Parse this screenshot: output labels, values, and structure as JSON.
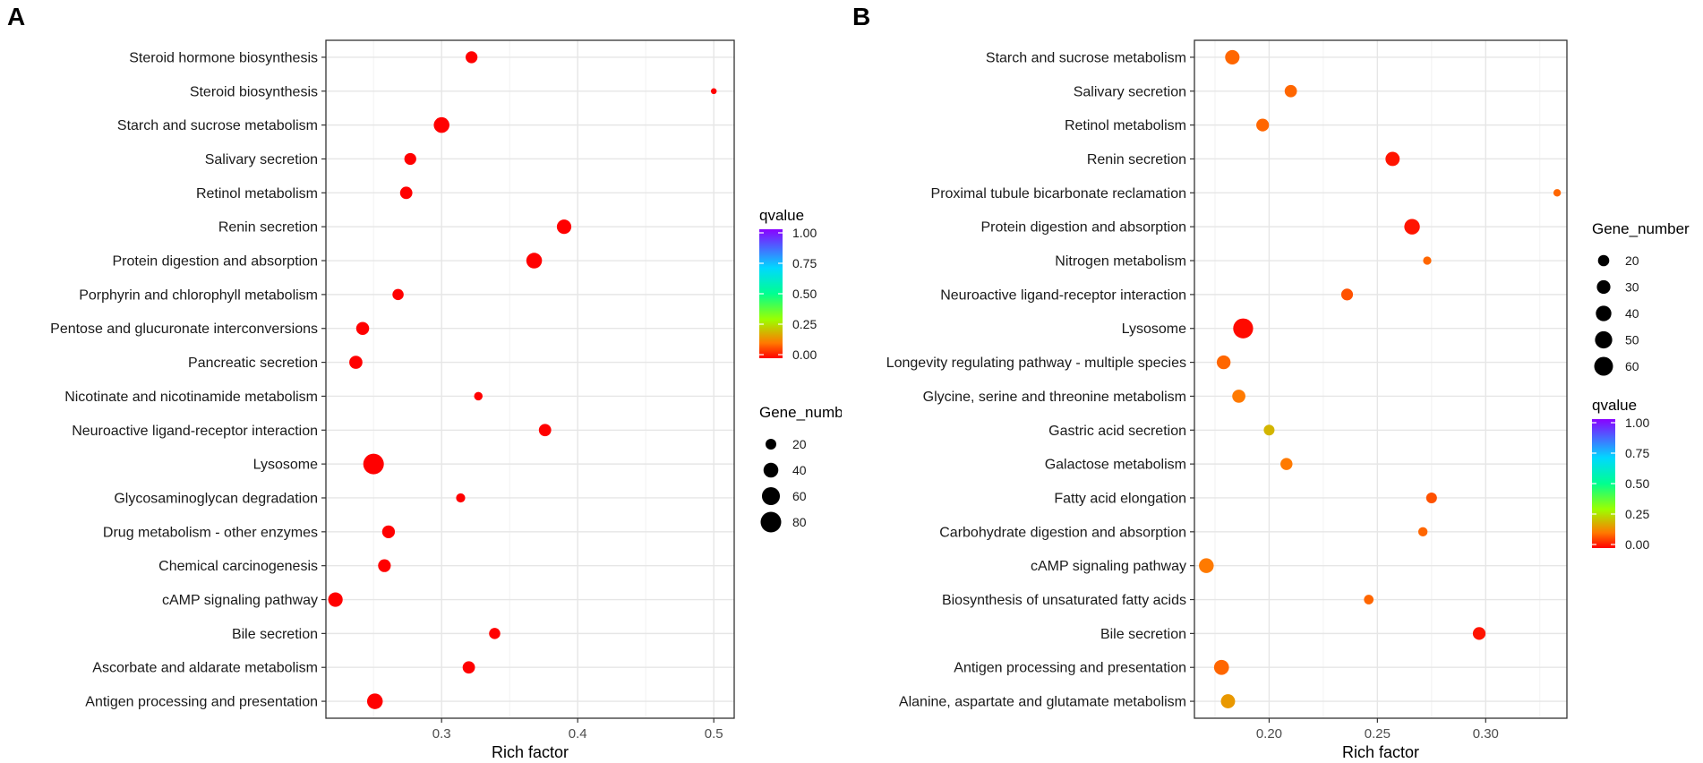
{
  "chart_data": [
    {
      "panel": "A",
      "type": "scatter",
      "xlabel": "Rich factor",
      "ylabel": "",
      "xlim": [
        0.215,
        0.515
      ],
      "xticks": [
        0.3,
        0.4,
        0.5
      ],
      "xtick_labels": [
        "0.3",
        "0.4",
        "0.5"
      ],
      "grid": true,
      "categories": [
        "Steroid hormone biosynthesis",
        "Steroid biosynthesis",
        "Starch and sucrose metabolism",
        "Salivary secretion",
        "Retinol metabolism",
        "Renin secretion",
        "Protein digestion and absorption",
        "Porphyrin and chlorophyll metabolism",
        "Pentose and glucuronate interconversions",
        "Pancreatic secretion",
        "Nicotinate and nicotinamide metabolism",
        "Neuroactive ligand-receptor interaction",
        "Lysosome",
        "Glycosaminoglycan degradation",
        "Drug metabolism - other enzymes",
        "Chemical carcinogenesis",
        "cAMP signaling pathway",
        "Bile secretion",
        "Ascorbate and aldarate metabolism",
        "Antigen processing and presentation"
      ],
      "points": [
        {
          "rich_factor": 0.322,
          "gene_number": 25,
          "qvalue": 0.0
        },
        {
          "rich_factor": 0.5,
          "gene_number": 5,
          "qvalue": 0.0
        },
        {
          "rich_factor": 0.3,
          "gene_number": 45,
          "qvalue": 0.0
        },
        {
          "rich_factor": 0.277,
          "gene_number": 25,
          "qvalue": 0.0
        },
        {
          "rich_factor": 0.274,
          "gene_number": 27,
          "qvalue": 0.0
        },
        {
          "rich_factor": 0.39,
          "gene_number": 38,
          "qvalue": 0.0
        },
        {
          "rich_factor": 0.368,
          "gene_number": 45,
          "qvalue": 0.0
        },
        {
          "rich_factor": 0.268,
          "gene_number": 22,
          "qvalue": 0.0
        },
        {
          "rich_factor": 0.242,
          "gene_number": 30,
          "qvalue": 0.0
        },
        {
          "rich_factor": 0.237,
          "gene_number": 31,
          "qvalue": 0.0
        },
        {
          "rich_factor": 0.327,
          "gene_number": 12,
          "qvalue": 0.0
        },
        {
          "rich_factor": 0.376,
          "gene_number": 27,
          "qvalue": 0.0
        },
        {
          "rich_factor": 0.25,
          "gene_number": 80,
          "qvalue": 0.0
        },
        {
          "rich_factor": 0.314,
          "gene_number": 14,
          "qvalue": 0.0
        },
        {
          "rich_factor": 0.261,
          "gene_number": 29,
          "qvalue": 0.0
        },
        {
          "rich_factor": 0.258,
          "gene_number": 29,
          "qvalue": 0.0
        },
        {
          "rich_factor": 0.222,
          "gene_number": 38,
          "qvalue": 0.0
        },
        {
          "rich_factor": 0.339,
          "gene_number": 22,
          "qvalue": 0.0
        },
        {
          "rich_factor": 0.32,
          "gene_number": 27,
          "qvalue": 0.0
        },
        {
          "rich_factor": 0.251,
          "gene_number": 45,
          "qvalue": 0.0
        }
      ],
      "legend_color": {
        "title": "qvalue",
        "labels": [
          "1.00",
          "0.75",
          "0.50",
          "0.25",
          "0.00"
        ]
      },
      "legend_size": {
        "title": "Gene_number",
        "labels": [
          "20",
          "40",
          "60",
          "80"
        ]
      }
    },
    {
      "panel": "B",
      "type": "scatter",
      "xlabel": "Rich factor",
      "ylabel": "",
      "xlim": [
        0.1655,
        0.3375
      ],
      "xticks": [
        0.2,
        0.25,
        0.3
      ],
      "xtick_labels": [
        "0.20",
        "0.25",
        "0.30"
      ],
      "grid": true,
      "categories": [
        "Starch and sucrose metabolism",
        "Salivary secretion",
        "Retinol metabolism",
        "Renin secretion",
        "Proximal tubule bicarbonate reclamation",
        "Protein digestion and absorption",
        "Nitrogen metabolism",
        "Neuroactive ligand-receptor interaction",
        "Lysosome",
        "Longevity regulating pathway - multiple species",
        "Glycine, serine and threonine metabolism",
        "Gastric acid secretion",
        "Galactose metabolism",
        "Fatty acid elongation",
        "Carbohydrate digestion and absorption",
        "cAMP signaling pathway",
        "Biosynthesis of unsaturated fatty acids",
        "Bile secretion",
        "Antigen processing and presentation",
        "Alanine, aspartate and glutamate metabolism"
      ],
      "points": [
        {
          "rich_factor": 0.183,
          "gene_number": 34,
          "qvalue": 0.1
        },
        {
          "rich_factor": 0.21,
          "gene_number": 24,
          "qvalue": 0.1
        },
        {
          "rich_factor": 0.197,
          "gene_number": 26,
          "qvalue": 0.1
        },
        {
          "rich_factor": 0.257,
          "gene_number": 33,
          "qvalue": 0.02
        },
        {
          "rich_factor": 0.333,
          "gene_number": 8,
          "qvalue": 0.1
        },
        {
          "rich_factor": 0.266,
          "gene_number": 40,
          "qvalue": 0.02
        },
        {
          "rich_factor": 0.273,
          "gene_number": 10,
          "qvalue": 0.1
        },
        {
          "rich_factor": 0.236,
          "gene_number": 22,
          "qvalue": 0.08
        },
        {
          "rich_factor": 0.188,
          "gene_number": 68,
          "qvalue": 0.01
        },
        {
          "rich_factor": 0.179,
          "gene_number": 31,
          "qvalue": 0.1
        },
        {
          "rich_factor": 0.186,
          "gene_number": 28,
          "qvalue": 0.12
        },
        {
          "rich_factor": 0.2,
          "gene_number": 18,
          "qvalue": 0.2
        },
        {
          "rich_factor": 0.208,
          "gene_number": 23,
          "qvalue": 0.12
        },
        {
          "rich_factor": 0.275,
          "gene_number": 18,
          "qvalue": 0.08
        },
        {
          "rich_factor": 0.271,
          "gene_number": 13,
          "qvalue": 0.1
        },
        {
          "rich_factor": 0.171,
          "gene_number": 36,
          "qvalue": 0.12
        },
        {
          "rich_factor": 0.246,
          "gene_number": 14,
          "qvalue": 0.1
        },
        {
          "rich_factor": 0.297,
          "gene_number": 26,
          "qvalue": 0.02
        },
        {
          "rich_factor": 0.178,
          "gene_number": 37,
          "qvalue": 0.1
        },
        {
          "rich_factor": 0.181,
          "gene_number": 33,
          "qvalue": 0.16
        }
      ],
      "legend_color": {
        "title": "qvalue",
        "labels": [
          "1.00",
          "0.75",
          "0.50",
          "0.25",
          "0.00"
        ]
      },
      "legend_size": {
        "title": "Gene_number",
        "labels": [
          "20",
          "30",
          "40",
          "50",
          "60"
        ]
      }
    }
  ],
  "colors": {
    "panel_border": "#333333",
    "grid_major": "#ebebeb",
    "grid_minor": "#f5f5f5",
    "gradient_stops": [
      "#ff0000",
      "#ff8000",
      "#a0ff00",
      "#00ff80",
      "#00e0ff",
      "#8000ff"
    ]
  }
}
